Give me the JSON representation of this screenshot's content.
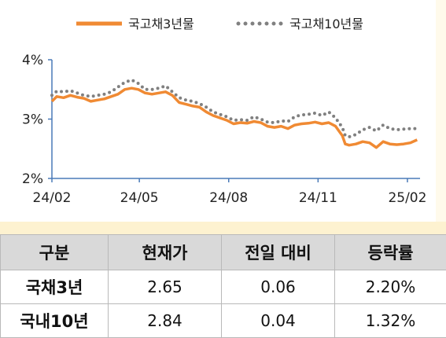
{
  "chart_data": {
    "type": "line",
    "x_ticks": [
      "24/02",
      "24/05",
      "24/08",
      "24/11",
      "25/02"
    ],
    "y_ticks": [
      "4%",
      "3%",
      "2%"
    ],
    "ylim": [
      2,
      4
    ],
    "xlim": [
      "2024-02-01",
      "2025-02-14"
    ],
    "grid": false,
    "legend_position": "top",
    "series": [
      {
        "name": "국고채3년물",
        "color": "#f08a33",
        "style": "solid",
        "points": [
          [
            "2024-02-01",
            3.3
          ],
          [
            "2024-02-06",
            3.38
          ],
          [
            "2024-02-13",
            3.36
          ],
          [
            "2024-02-20",
            3.4
          ],
          [
            "2024-02-27",
            3.37
          ],
          [
            "2024-03-05",
            3.35
          ],
          [
            "2024-03-12",
            3.3
          ],
          [
            "2024-03-19",
            3.32
          ],
          [
            "2024-03-26",
            3.34
          ],
          [
            "2024-04-02",
            3.38
          ],
          [
            "2024-04-09",
            3.42
          ],
          [
            "2024-04-16",
            3.5
          ],
          [
            "2024-04-23",
            3.52
          ],
          [
            "2024-04-30",
            3.5
          ],
          [
            "2024-05-07",
            3.44
          ],
          [
            "2024-05-14",
            3.42
          ],
          [
            "2024-05-21",
            3.44
          ],
          [
            "2024-05-28",
            3.46
          ],
          [
            "2024-06-04",
            3.4
          ],
          [
            "2024-06-11",
            3.28
          ],
          [
            "2024-06-18",
            3.25
          ],
          [
            "2024-06-25",
            3.22
          ],
          [
            "2024-07-02",
            3.2
          ],
          [
            "2024-07-09",
            3.12
          ],
          [
            "2024-07-16",
            3.06
          ],
          [
            "2024-07-23",
            3.02
          ],
          [
            "2024-07-30",
            2.98
          ],
          [
            "2024-08-06",
            2.92
          ],
          [
            "2024-08-13",
            2.94
          ],
          [
            "2024-08-20",
            2.93
          ],
          [
            "2024-08-27",
            2.96
          ],
          [
            "2024-09-03",
            2.94
          ],
          [
            "2024-09-10",
            2.88
          ],
          [
            "2024-09-17",
            2.86
          ],
          [
            "2024-09-24",
            2.88
          ],
          [
            "2024-10-01",
            2.84
          ],
          [
            "2024-10-08",
            2.9
          ],
          [
            "2024-10-15",
            2.92
          ],
          [
            "2024-10-22",
            2.93
          ],
          [
            "2024-10-29",
            2.95
          ],
          [
            "2024-11-05",
            2.92
          ],
          [
            "2024-11-12",
            2.94
          ],
          [
            "2024-11-19",
            2.88
          ],
          [
            "2024-11-26",
            2.72
          ],
          [
            "2024-11-29",
            2.58
          ],
          [
            "2024-12-03",
            2.56
          ],
          [
            "2024-12-10",
            2.58
          ],
          [
            "2024-12-17",
            2.62
          ],
          [
            "2024-12-24",
            2.6
          ],
          [
            "2024-12-31",
            2.52
          ],
          [
            "2025-01-07",
            2.62
          ],
          [
            "2025-01-14",
            2.58
          ],
          [
            "2025-01-21",
            2.57
          ],
          [
            "2025-01-28",
            2.58
          ],
          [
            "2025-02-04",
            2.6
          ],
          [
            "2025-02-11",
            2.65
          ]
        ]
      },
      {
        "name": "국고채10년물",
        "color": "#808080",
        "style": "dotted",
        "points": [
          [
            "2024-02-01",
            3.4
          ],
          [
            "2024-02-06",
            3.47
          ],
          [
            "2024-02-13",
            3.46
          ],
          [
            "2024-02-20",
            3.48
          ],
          [
            "2024-02-27",
            3.44
          ],
          [
            "2024-03-05",
            3.4
          ],
          [
            "2024-03-12",
            3.38
          ],
          [
            "2024-03-19",
            3.4
          ],
          [
            "2024-03-26",
            3.42
          ],
          [
            "2024-04-02",
            3.46
          ],
          [
            "2024-04-09",
            3.54
          ],
          [
            "2024-04-16",
            3.62
          ],
          [
            "2024-04-23",
            3.66
          ],
          [
            "2024-04-30",
            3.6
          ],
          [
            "2024-05-07",
            3.5
          ],
          [
            "2024-05-14",
            3.5
          ],
          [
            "2024-05-21",
            3.52
          ],
          [
            "2024-05-28",
            3.56
          ],
          [
            "2024-06-04",
            3.46
          ],
          [
            "2024-06-11",
            3.36
          ],
          [
            "2024-06-18",
            3.32
          ],
          [
            "2024-06-25",
            3.3
          ],
          [
            "2024-07-02",
            3.26
          ],
          [
            "2024-07-09",
            3.2
          ],
          [
            "2024-07-16",
            3.12
          ],
          [
            "2024-07-23",
            3.08
          ],
          [
            "2024-07-30",
            3.04
          ],
          [
            "2024-08-06",
            2.98
          ],
          [
            "2024-08-13",
            2.99
          ],
          [
            "2024-08-20",
            2.98
          ],
          [
            "2024-08-27",
            3.04
          ],
          [
            "2024-09-03",
            3.0
          ],
          [
            "2024-09-10",
            2.95
          ],
          [
            "2024-09-17",
            2.94
          ],
          [
            "2024-09-24",
            2.97
          ],
          [
            "2024-10-01",
            2.96
          ],
          [
            "2024-10-08",
            3.04
          ],
          [
            "2024-10-15",
            3.07
          ],
          [
            "2024-10-22",
            3.08
          ],
          [
            "2024-10-29",
            3.1
          ],
          [
            "2024-11-05",
            3.06
          ],
          [
            "2024-11-12",
            3.12
          ],
          [
            "2024-11-19",
            3.02
          ],
          [
            "2024-11-26",
            2.86
          ],
          [
            "2024-11-29",
            2.72
          ],
          [
            "2024-12-03",
            2.7
          ],
          [
            "2024-12-10",
            2.74
          ],
          [
            "2024-12-17",
            2.82
          ],
          [
            "2024-12-24",
            2.86
          ],
          [
            "2024-12-31",
            2.8
          ],
          [
            "2025-01-07",
            2.9
          ],
          [
            "2025-01-14",
            2.84
          ],
          [
            "2025-01-21",
            2.82
          ],
          [
            "2025-01-28",
            2.83
          ],
          [
            "2025-02-04",
            2.84
          ],
          [
            "2025-02-11",
            2.84
          ]
        ]
      }
    ]
  },
  "table": {
    "headers": [
      "구분",
      "현재가",
      "전일 대비",
      "등락률"
    ],
    "rows": [
      {
        "label": "국채3년",
        "current": "2.65",
        "change": "0.06",
        "rate": "2.20%"
      },
      {
        "label": "국내10년",
        "current": "2.84",
        "change": "0.04",
        "rate": "1.32%"
      }
    ]
  }
}
